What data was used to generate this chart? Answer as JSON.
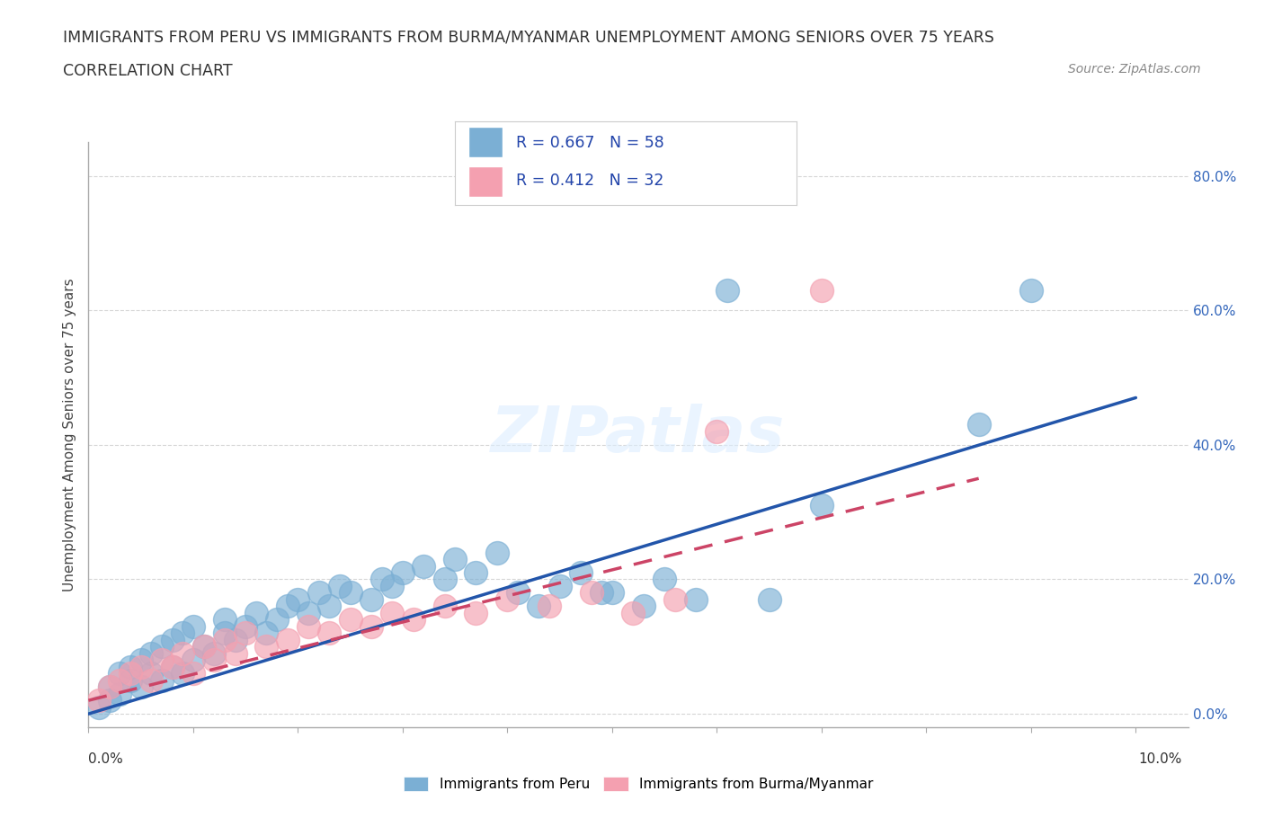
{
  "title_line1": "IMMIGRANTS FROM PERU VS IMMIGRANTS FROM BURMA/MYANMAR UNEMPLOYMENT AMONG SENIORS OVER 75 YEARS",
  "title_line2": "CORRELATION CHART",
  "source": "Source: ZipAtlas.com",
  "ylabel": "Unemployment Among Seniors over 75 years",
  "right_ytick_vals": [
    0.0,
    0.2,
    0.4,
    0.6,
    0.8
  ],
  "right_ytick_labels": [
    "0.0%",
    "20.0%",
    "40.0%",
    "60.0%",
    "80.0%"
  ],
  "watermark": "ZIPatlas",
  "peru_color": "#7BAFD4",
  "burma_color": "#F4A0B0",
  "peru_line_color": "#2255AA",
  "burma_line_color": "#CC4466",
  "legend_text_color": "#2244AA",
  "peru_R": 0.667,
  "peru_N": 58,
  "burma_R": 0.412,
  "burma_N": 32,
  "peru_scatter_x": [
    0.001,
    0.002,
    0.002,
    0.003,
    0.003,
    0.004,
    0.004,
    0.005,
    0.005,
    0.006,
    0.006,
    0.007,
    0.007,
    0.008,
    0.008,
    0.009,
    0.009,
    0.01,
    0.01,
    0.011,
    0.012,
    0.013,
    0.013,
    0.014,
    0.015,
    0.016,
    0.017,
    0.018,
    0.019,
    0.02,
    0.021,
    0.022,
    0.023,
    0.024,
    0.025,
    0.027,
    0.028,
    0.029,
    0.03,
    0.032,
    0.034,
    0.035,
    0.037,
    0.039,
    0.041,
    0.043,
    0.045,
    0.047,
    0.05,
    0.053,
    0.055,
    0.058,
    0.061,
    0.065,
    0.07,
    0.085,
    0.049,
    0.09
  ],
  "peru_scatter_y": [
    0.01,
    0.02,
    0.04,
    0.03,
    0.06,
    0.05,
    0.07,
    0.04,
    0.08,
    0.06,
    0.09,
    0.05,
    0.1,
    0.07,
    0.11,
    0.06,
    0.12,
    0.08,
    0.13,
    0.1,
    0.09,
    0.12,
    0.14,
    0.11,
    0.13,
    0.15,
    0.12,
    0.14,
    0.16,
    0.17,
    0.15,
    0.18,
    0.16,
    0.19,
    0.18,
    0.17,
    0.2,
    0.19,
    0.21,
    0.22,
    0.2,
    0.23,
    0.21,
    0.24,
    0.18,
    0.16,
    0.19,
    0.21,
    0.18,
    0.16,
    0.2,
    0.17,
    0.63,
    0.17,
    0.31,
    0.43,
    0.18,
    0.63
  ],
  "burma_scatter_x": [
    0.001,
    0.002,
    0.003,
    0.004,
    0.005,
    0.006,
    0.007,
    0.008,
    0.009,
    0.01,
    0.011,
    0.012,
    0.013,
    0.014,
    0.015,
    0.017,
    0.019,
    0.021,
    0.023,
    0.025,
    0.027,
    0.029,
    0.031,
    0.034,
    0.037,
    0.04,
    0.044,
    0.048,
    0.052,
    0.056,
    0.06,
    0.07
  ],
  "burma_scatter_y": [
    0.02,
    0.04,
    0.05,
    0.06,
    0.07,
    0.05,
    0.08,
    0.07,
    0.09,
    0.06,
    0.1,
    0.08,
    0.11,
    0.09,
    0.12,
    0.1,
    0.11,
    0.13,
    0.12,
    0.14,
    0.13,
    0.15,
    0.14,
    0.16,
    0.15,
    0.17,
    0.16,
    0.18,
    0.15,
    0.17,
    0.42,
    0.63
  ],
  "peru_line_x0": 0.0,
  "peru_line_x1": 0.1,
  "peru_line_y0": 0.0,
  "peru_line_y1": 0.47,
  "burma_line_x0": 0.0,
  "burma_line_x1": 0.085,
  "burma_line_y0": 0.02,
  "burma_line_y1": 0.35,
  "xlim": [
    0.0,
    0.105
  ],
  "ylim": [
    -0.02,
    0.85
  ],
  "background_color": "#FFFFFF",
  "grid_color": "#CCCCCC",
  "axis_color": "#AAAAAA",
  "title_color": "#333333",
  "ylabel_color": "#444444",
  "right_tick_color": "#3366BB"
}
